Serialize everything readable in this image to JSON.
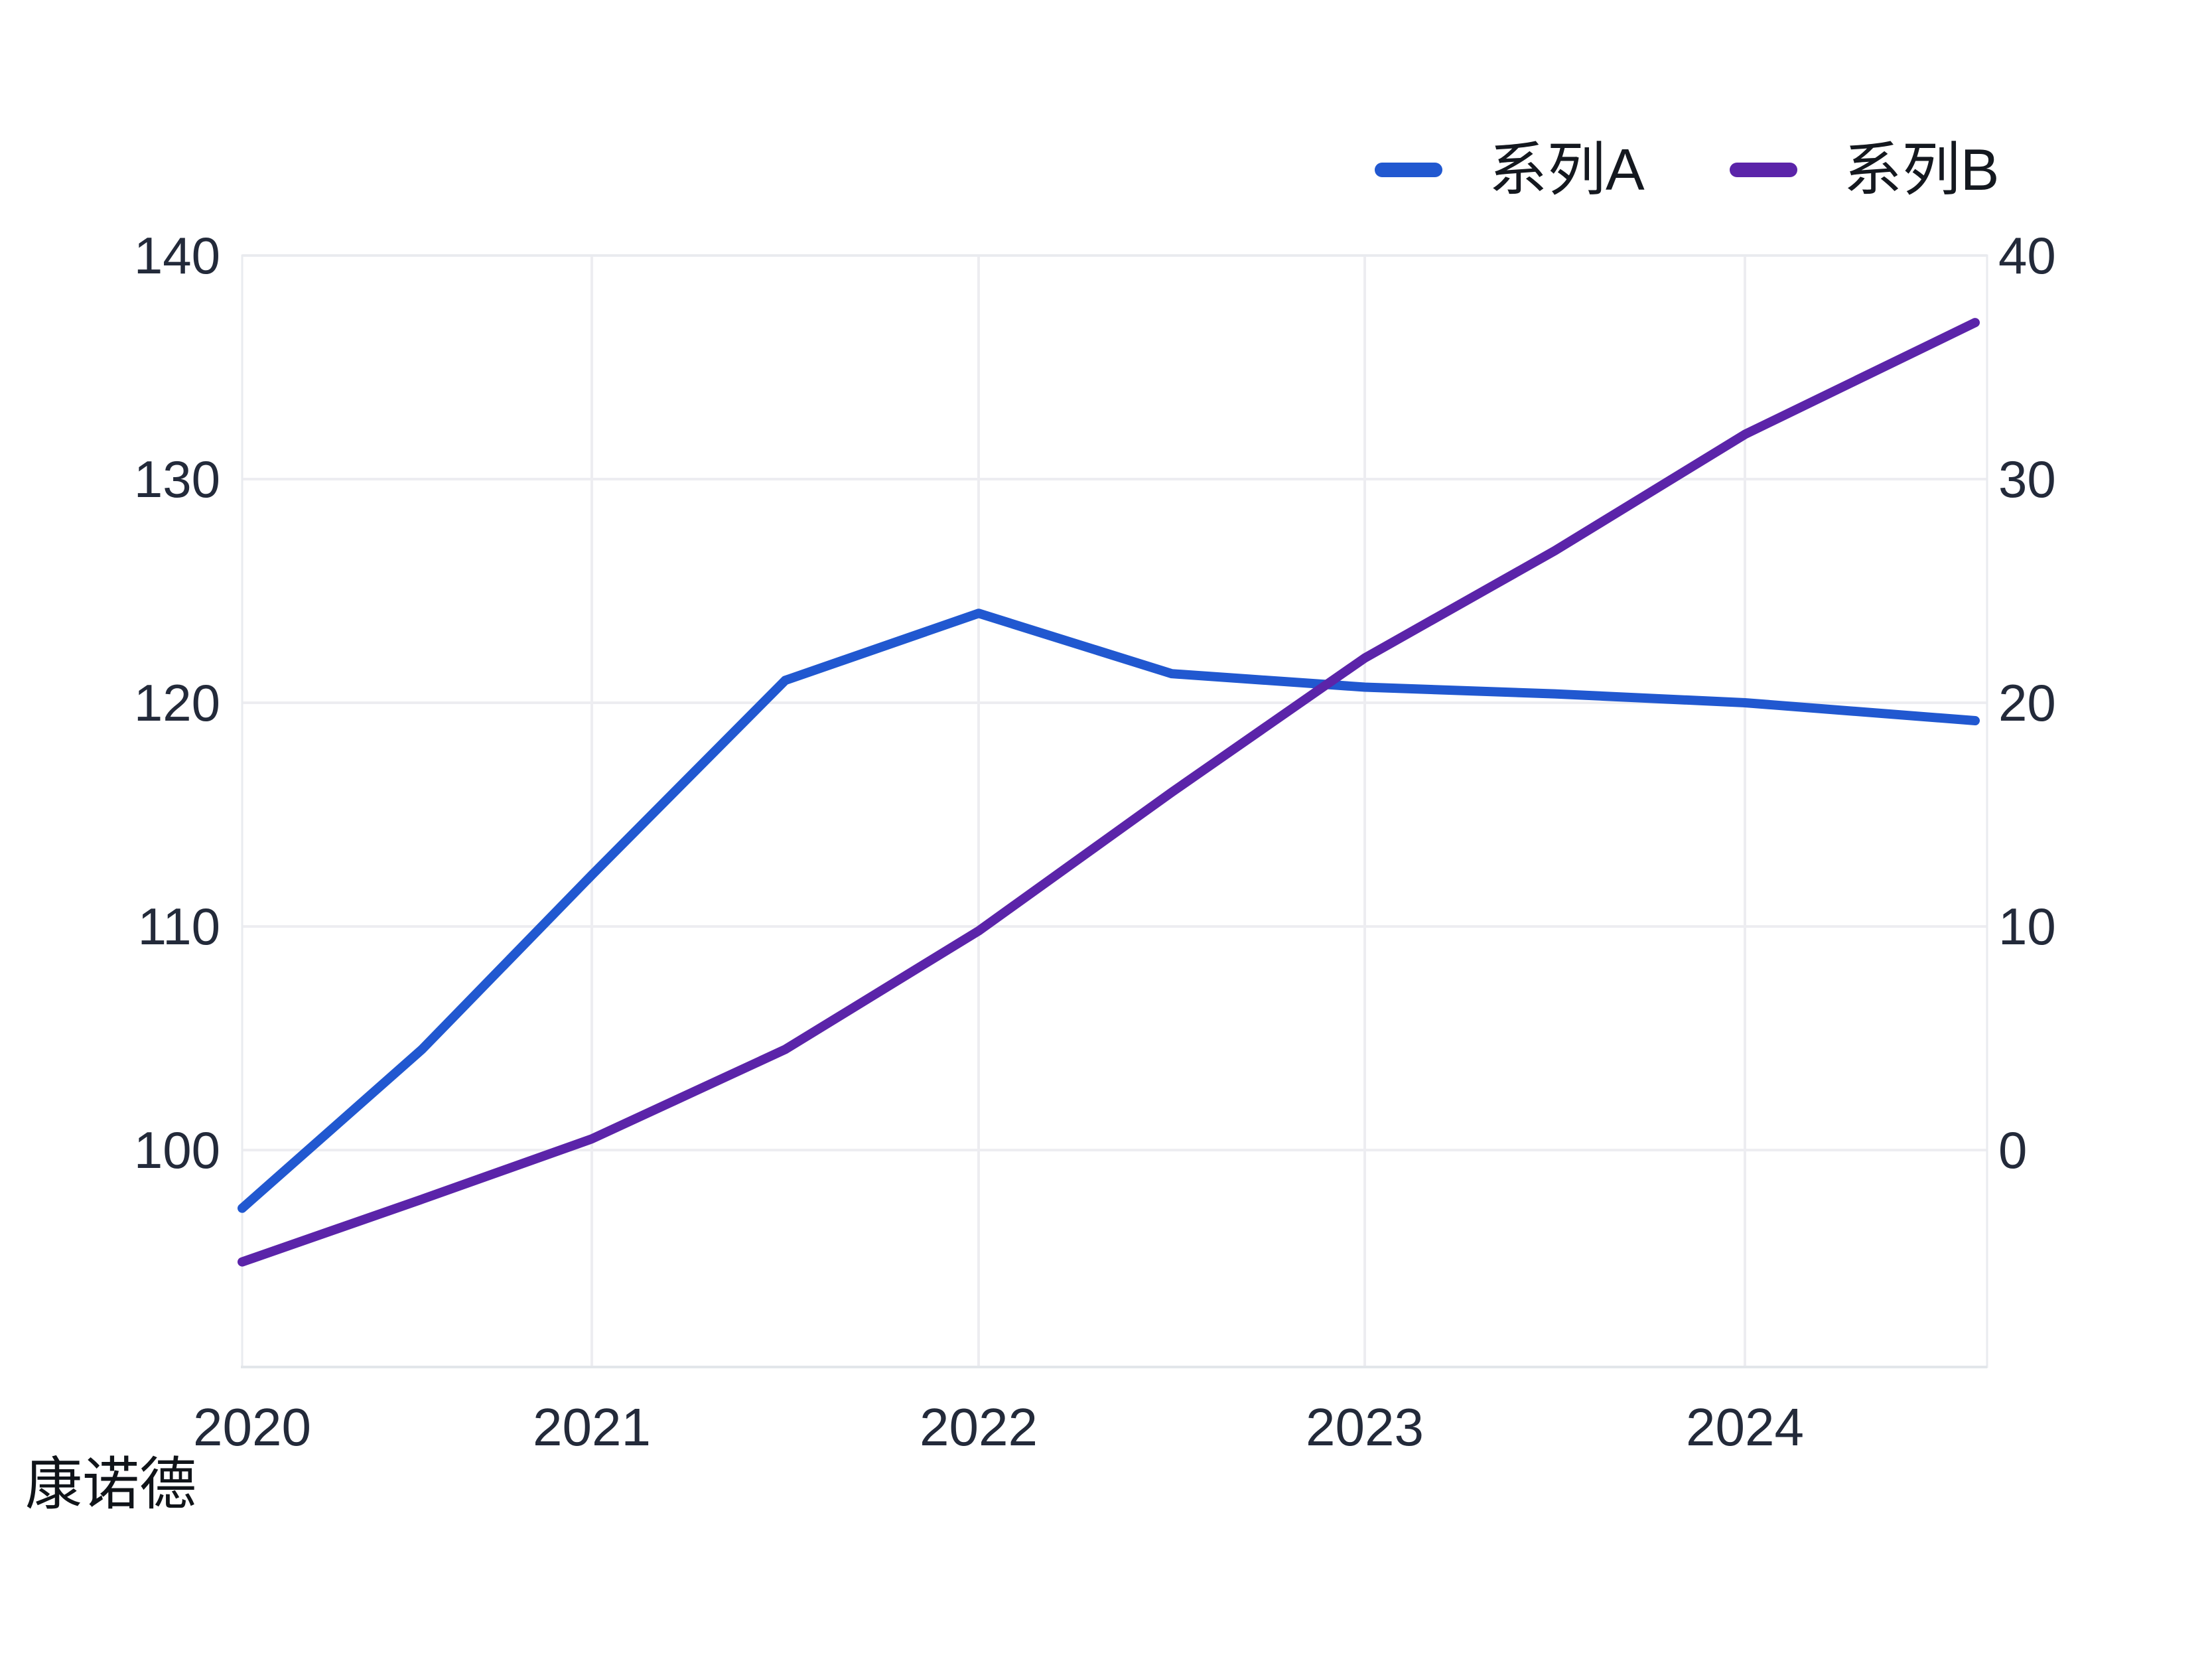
{
  "page": {
    "background": "#ffffff",
    "watermark": "康诺德"
  },
  "legend": {
    "items": [
      {
        "label": "系列A",
        "color": "#2158d0"
      },
      {
        "label": "系列B",
        "color": "#5b24a9"
      }
    ]
  },
  "chart_data": {
    "type": "line",
    "title": "",
    "xlabel": "",
    "ylabel": "",
    "grid": true,
    "legend_position": "top-right",
    "x": [
      2020,
      2020.5,
      2021,
      2021.5,
      2022,
      2022.5,
      2023,
      2023.5,
      2024,
      2024.5
    ],
    "x_ticks": [
      2020,
      2021,
      2022,
      2023,
      2024
    ],
    "series": [
      {
        "name": "系列A",
        "axis": "left",
        "color": "#2158d0",
        "values": [
          97.4,
          104.5,
          112.3,
          121.0,
          124.0,
          121.3,
          120.7,
          120.4,
          120.0,
          119.2
        ]
      },
      {
        "name": "系列B",
        "axis": "right",
        "color": "#5b24a9",
        "values": [
          -5.0,
          -2.2,
          0.5,
          4.5,
          9.8,
          16.0,
          22.0,
          26.8,
          32.0,
          37.0
        ]
      }
    ],
    "left_axis": {
      "ticks": [
        140,
        130,
        120,
        110,
        100
      ],
      "min": 90.3,
      "max": 140
    },
    "right_axis": {
      "ticks": [
        40,
        30,
        20,
        10,
        0
      ],
      "min": -9.7,
      "max": 40
    },
    "colors": {
      "grid": "#ededf1",
      "border": "#e9ebef",
      "axis_bottom": "#e2e6ea",
      "tick_text": "#232a3a"
    }
  }
}
